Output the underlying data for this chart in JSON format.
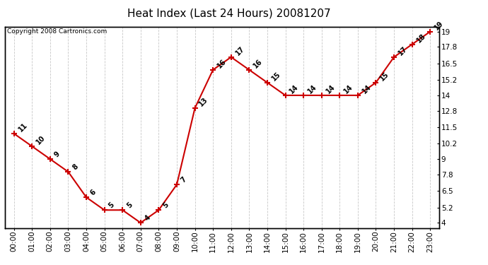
{
  "title": "Heat Index (Last 24 Hours) 20081207",
  "copyright": "Copyright 2008 Cartronics.com",
  "hours": [
    "00:00",
    "01:00",
    "02:00",
    "03:00",
    "04:00",
    "05:00",
    "06:00",
    "07:00",
    "08:00",
    "09:00",
    "10:00",
    "11:00",
    "12:00",
    "13:00",
    "14:00",
    "15:00",
    "16:00",
    "17:00",
    "18:00",
    "19:00",
    "20:00",
    "21:00",
    "22:00",
    "23:00"
  ],
  "values": [
    11,
    10,
    9,
    8,
    6,
    5,
    5,
    4,
    5,
    7,
    13,
    16,
    17,
    16,
    15,
    14,
    14,
    14,
    14,
    14,
    15,
    17,
    18,
    19
  ],
  "yticks": [
    4.0,
    5.2,
    6.5,
    7.8,
    9.0,
    10.2,
    11.5,
    12.8,
    14.0,
    15.2,
    16.5,
    17.8,
    19.0
  ],
  "ylim": [
    3.6,
    19.4
  ],
  "line_color": "#cc0000",
  "marker_color": "#cc0000",
  "grid_color": "#c8c8c8",
  "bg_color": "#ffffff",
  "plot_bg": "#ffffff",
  "title_fontsize": 11,
  "label_fontsize": 7,
  "tick_fontsize": 7.5,
  "copyright_fontsize": 6.5
}
